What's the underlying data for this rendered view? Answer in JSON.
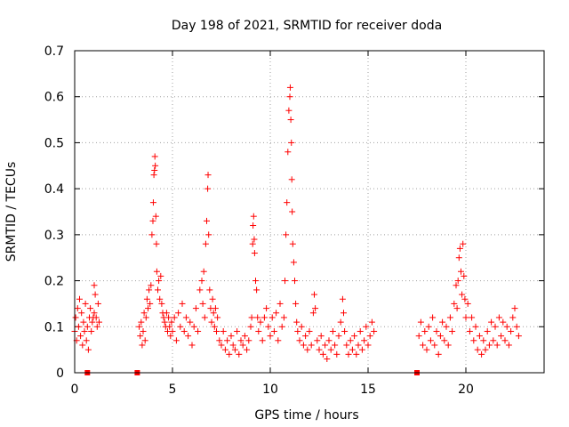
{
  "chart_data": {
    "type": "scatter",
    "title": "Day 198 of 2021, SRMTID for receiver doda",
    "xlabel": "GPS time / hours",
    "ylabel": "SRMTID / TECUs",
    "xlim": [
      0,
      24
    ],
    "ylim": [
      0,
      0.7
    ],
    "xticks": [
      0,
      5,
      10,
      15,
      20
    ],
    "yticks": [
      0,
      0.1,
      0.2,
      0.3,
      0.4,
      0.5,
      0.6,
      0.7
    ],
    "grid": true,
    "marker": "plus",
    "color": "#ff0000",
    "gap_markers_x": [
      0.65,
      3.2,
      17.5
    ],
    "series": [
      {
        "name": "SRMTID",
        "points": [
          [
            0.0,
            0.09
          ],
          [
            0.05,
            0.12
          ],
          [
            0.1,
            0.07
          ],
          [
            0.15,
            0.14
          ],
          [
            0.2,
            0.1
          ],
          [
            0.25,
            0.16
          ],
          [
            0.3,
            0.08
          ],
          [
            0.35,
            0.13
          ],
          [
            0.4,
            0.06
          ],
          [
            0.45,
            0.11
          ],
          [
            0.5,
            0.09
          ],
          [
            0.55,
            0.15
          ],
          [
            0.6,
            0.07
          ],
          [
            0.65,
            0.1
          ],
          [
            0.7,
            0.05
          ],
          [
            0.75,
            0.12
          ],
          [
            0.8,
            0.14
          ],
          [
            0.85,
            0.09
          ],
          [
            0.9,
            0.11
          ],
          [
            1.0,
            0.13
          ],
          [
            1.05,
            0.17
          ],
          [
            1.1,
            0.12
          ],
          [
            1.15,
            0.1
          ],
          [
            1.2,
            0.15
          ],
          [
            1.25,
            0.11
          ],
          [
            1.0,
            0.19
          ],
          [
            0.95,
            0.12
          ],
          [
            3.3,
            0.1
          ],
          [
            3.35,
            0.08
          ],
          [
            3.4,
            0.11
          ],
          [
            3.45,
            0.06
          ],
          [
            3.5,
            0.09
          ],
          [
            3.55,
            0.13
          ],
          [
            3.6,
            0.07
          ],
          [
            3.65,
            0.12
          ],
          [
            3.7,
            0.16
          ],
          [
            3.75,
            0.14
          ],
          [
            3.8,
            0.18
          ],
          [
            3.85,
            0.15
          ],
          [
            3.9,
            0.19
          ],
          [
            3.95,
            0.3
          ],
          [
            4.0,
            0.33
          ],
          [
            4.02,
            0.37
          ],
          [
            4.05,
            0.43
          ],
          [
            4.08,
            0.44
          ],
          [
            4.1,
            0.47
          ],
          [
            4.12,
            0.45
          ],
          [
            4.15,
            0.34
          ],
          [
            4.18,
            0.28
          ],
          [
            4.2,
            0.22
          ],
          [
            4.25,
            0.18
          ],
          [
            4.3,
            0.2
          ],
          [
            4.35,
            0.16
          ],
          [
            4.4,
            0.21
          ],
          [
            4.45,
            0.15
          ],
          [
            4.5,
            0.13
          ],
          [
            4.55,
            0.12
          ],
          [
            4.6,
            0.11
          ],
          [
            4.65,
            0.1
          ],
          [
            4.7,
            0.13
          ],
          [
            4.75,
            0.09
          ],
          [
            4.8,
            0.12
          ],
          [
            4.85,
            0.1
          ],
          [
            4.9,
            0.08
          ],
          [
            4.95,
            0.11
          ],
          [
            5.0,
            0.09
          ],
          [
            5.1,
            0.12
          ],
          [
            5.2,
            0.07
          ],
          [
            5.3,
            0.13
          ],
          [
            5.4,
            0.1
          ],
          [
            5.5,
            0.15
          ],
          [
            5.6,
            0.09
          ],
          [
            5.7,
            0.12
          ],
          [
            5.8,
            0.08
          ],
          [
            5.9,
            0.11
          ],
          [
            6.0,
            0.06
          ],
          [
            6.1,
            0.1
          ],
          [
            6.2,
            0.14
          ],
          [
            6.3,
            0.09
          ],
          [
            6.4,
            0.18
          ],
          [
            6.5,
            0.2
          ],
          [
            6.55,
            0.15
          ],
          [
            6.6,
            0.22
          ],
          [
            6.65,
            0.12
          ],
          [
            6.7,
            0.28
          ],
          [
            6.75,
            0.33
          ],
          [
            6.8,
            0.4
          ],
          [
            6.82,
            0.43
          ],
          [
            6.85,
            0.3
          ],
          [
            6.9,
            0.18
          ],
          [
            6.95,
            0.14
          ],
          [
            7.0,
            0.11
          ],
          [
            7.05,
            0.16
          ],
          [
            7.1,
            0.13
          ],
          [
            7.15,
            0.1
          ],
          [
            7.2,
            0.14
          ],
          [
            7.25,
            0.09
          ],
          [
            7.3,
            0.12
          ],
          [
            7.4,
            0.07
          ],
          [
            7.5,
            0.06
          ],
          [
            7.6,
            0.09
          ],
          [
            7.7,
            0.05
          ],
          [
            7.8,
            0.07
          ],
          [
            7.9,
            0.04
          ],
          [
            8.0,
            0.08
          ],
          [
            8.1,
            0.06
          ],
          [
            8.2,
            0.05
          ],
          [
            8.3,
            0.09
          ],
          [
            8.4,
            0.04
          ],
          [
            8.5,
            0.07
          ],
          [
            8.6,
            0.06
          ],
          [
            8.7,
            0.08
          ],
          [
            8.8,
            0.05
          ],
          [
            8.9,
            0.07
          ],
          [
            9.0,
            0.1
          ],
          [
            9.05,
            0.12
          ],
          [
            9.1,
            0.28
          ],
          [
            9.12,
            0.32
          ],
          [
            9.15,
            0.34
          ],
          [
            9.18,
            0.29
          ],
          [
            9.2,
            0.26
          ],
          [
            9.25,
            0.2
          ],
          [
            9.3,
            0.18
          ],
          [
            9.35,
            0.12
          ],
          [
            9.4,
            0.09
          ],
          [
            9.5,
            0.11
          ],
          [
            9.6,
            0.07
          ],
          [
            9.7,
            0.12
          ],
          [
            9.8,
            0.14
          ],
          [
            9.9,
            0.1
          ],
          [
            10.0,
            0.08
          ],
          [
            10.1,
            0.12
          ],
          [
            10.2,
            0.09
          ],
          [
            10.3,
            0.13
          ],
          [
            10.4,
            0.07
          ],
          [
            10.5,
            0.15
          ],
          [
            10.6,
            0.1
          ],
          [
            10.7,
            0.12
          ],
          [
            10.75,
            0.2
          ],
          [
            10.8,
            0.3
          ],
          [
            10.85,
            0.37
          ],
          [
            10.9,
            0.48
          ],
          [
            10.95,
            0.57
          ],
          [
            11.0,
            0.6
          ],
          [
            11.02,
            0.62
          ],
          [
            11.05,
            0.55
          ],
          [
            11.08,
            0.5
          ],
          [
            11.1,
            0.42
          ],
          [
            11.12,
            0.35
          ],
          [
            11.15,
            0.28
          ],
          [
            11.2,
            0.24
          ],
          [
            11.25,
            0.2
          ],
          [
            11.3,
            0.15
          ],
          [
            11.35,
            0.11
          ],
          [
            11.4,
            0.09
          ],
          [
            11.5,
            0.07
          ],
          [
            11.6,
            0.1
          ],
          [
            11.7,
            0.06
          ],
          [
            11.8,
            0.08
          ],
          [
            11.9,
            0.05
          ],
          [
            12.0,
            0.09
          ],
          [
            12.1,
            0.06
          ],
          [
            12.2,
            0.13
          ],
          [
            12.25,
            0.17
          ],
          [
            12.3,
            0.14
          ],
          [
            12.4,
            0.07
          ],
          [
            12.5,
            0.05
          ],
          [
            12.6,
            0.08
          ],
          [
            12.7,
            0.04
          ],
          [
            12.8,
            0.06
          ],
          [
            12.9,
            0.03
          ],
          [
            13.0,
            0.07
          ],
          [
            13.1,
            0.05
          ],
          [
            13.2,
            0.09
          ],
          [
            13.3,
            0.06
          ],
          [
            13.4,
            0.04
          ],
          [
            13.5,
            0.08
          ],
          [
            13.6,
            0.11
          ],
          [
            13.7,
            0.16
          ],
          [
            13.75,
            0.13
          ],
          [
            13.8,
            0.09
          ],
          [
            13.9,
            0.06
          ],
          [
            14.0,
            0.04
          ],
          [
            14.1,
            0.07
          ],
          [
            14.2,
            0.05
          ],
          [
            14.3,
            0.08
          ],
          [
            14.4,
            0.04
          ],
          [
            14.5,
            0.06
          ],
          [
            14.6,
            0.09
          ],
          [
            14.7,
            0.05
          ],
          [
            14.8,
            0.07
          ],
          [
            14.9,
            0.1
          ],
          [
            15.0,
            0.06
          ],
          [
            15.1,
            0.08
          ],
          [
            15.2,
            0.11
          ],
          [
            15.3,
            0.09
          ],
          [
            17.6,
            0.08
          ],
          [
            17.7,
            0.11
          ],
          [
            17.8,
            0.06
          ],
          [
            17.9,
            0.09
          ],
          [
            18.0,
            0.05
          ],
          [
            18.1,
            0.1
          ],
          [
            18.2,
            0.07
          ],
          [
            18.3,
            0.12
          ],
          [
            18.4,
            0.06
          ],
          [
            18.5,
            0.09
          ],
          [
            18.6,
            0.04
          ],
          [
            18.7,
            0.08
          ],
          [
            18.8,
            0.11
          ],
          [
            18.9,
            0.07
          ],
          [
            19.0,
            0.1
          ],
          [
            19.1,
            0.06
          ],
          [
            19.2,
            0.12
          ],
          [
            19.3,
            0.09
          ],
          [
            19.4,
            0.15
          ],
          [
            19.5,
            0.19
          ],
          [
            19.55,
            0.14
          ],
          [
            19.6,
            0.2
          ],
          [
            19.65,
            0.25
          ],
          [
            19.7,
            0.27
          ],
          [
            19.75,
            0.22
          ],
          [
            19.8,
            0.17
          ],
          [
            19.85,
            0.28
          ],
          [
            19.9,
            0.21
          ],
          [
            19.95,
            0.16
          ],
          [
            20.0,
            0.12
          ],
          [
            20.1,
            0.15
          ],
          [
            20.2,
            0.09
          ],
          [
            20.3,
            0.12
          ],
          [
            20.4,
            0.07
          ],
          [
            20.5,
            0.1
          ],
          [
            20.6,
            0.05
          ],
          [
            20.7,
            0.08
          ],
          [
            20.8,
            0.04
          ],
          [
            20.9,
            0.07
          ],
          [
            21.0,
            0.05
          ],
          [
            21.1,
            0.09
          ],
          [
            21.2,
            0.06
          ],
          [
            21.3,
            0.11
          ],
          [
            21.4,
            0.07
          ],
          [
            21.5,
            0.1
          ],
          [
            21.6,
            0.06
          ],
          [
            21.7,
            0.12
          ],
          [
            21.8,
            0.08
          ],
          [
            21.9,
            0.11
          ],
          [
            22.0,
            0.07
          ],
          [
            22.1,
            0.1
          ],
          [
            22.2,
            0.06
          ],
          [
            22.3,
            0.09
          ],
          [
            22.4,
            0.12
          ],
          [
            22.5,
            0.14
          ],
          [
            22.6,
            0.1
          ],
          [
            22.7,
            0.08
          ]
        ]
      }
    ]
  }
}
